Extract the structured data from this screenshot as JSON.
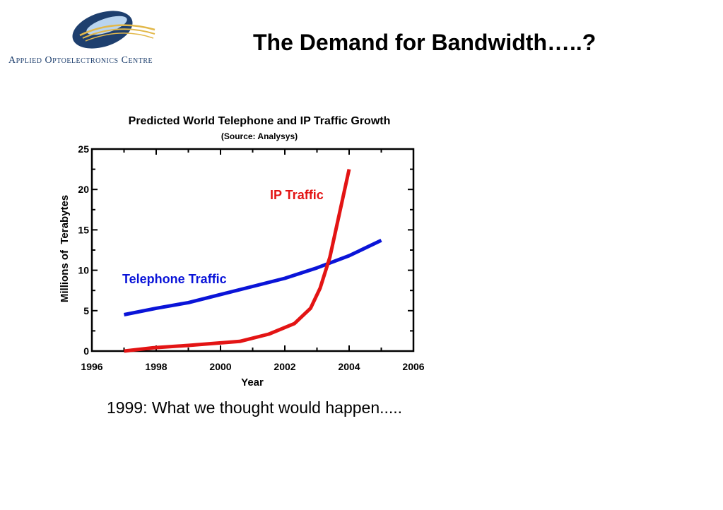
{
  "header": {
    "logo_text": "Applied Optoelectronics Centre",
    "title": "The Demand for Bandwidth…..?"
  },
  "caption": "1999: What we thought would happen.....",
  "colors": {
    "telephone": "#0a14d8",
    "ip": "#e31414",
    "logo_blue": "#1e3f6e",
    "logo_gold": "#e2b84a"
  },
  "chart_data": {
    "type": "line",
    "title": "Predicted World Telephone and IP Traffic Growth",
    "subtitle": "(Source: Analysys)",
    "xlabel": "Year",
    "ylabel": "Millions of  Terabytes",
    "xlim": [
      1996,
      2006
    ],
    "ylim": [
      0,
      25
    ],
    "x_ticks": [
      1996,
      1998,
      2000,
      2002,
      2004,
      2006
    ],
    "y_ticks": [
      0,
      5,
      10,
      15,
      20,
      25
    ],
    "grid": false,
    "series": [
      {
        "name": "Telephone Traffic",
        "color": "#0a14d8",
        "points": [
          [
            1997,
            4.5
          ],
          [
            1998,
            5.3
          ],
          [
            1999,
            6.0
          ],
          [
            2000,
            7.0
          ],
          [
            2001,
            8.0
          ],
          [
            2002,
            9.0
          ],
          [
            2003,
            10.3
          ],
          [
            2004,
            11.8
          ],
          [
            2005,
            13.7
          ]
        ]
      },
      {
        "name": "IP Traffic",
        "color": "#e31414",
        "points": [
          [
            1997,
            0.0
          ],
          [
            1997.9,
            0.4
          ],
          [
            1999,
            0.7
          ],
          [
            2000.6,
            1.2
          ],
          [
            2001.5,
            2.1
          ],
          [
            2002.3,
            3.4
          ],
          [
            2002.8,
            5.3
          ],
          [
            2003.1,
            7.8
          ],
          [
            2003.4,
            11.6
          ],
          [
            2004,
            22.5
          ]
        ]
      }
    ]
  }
}
